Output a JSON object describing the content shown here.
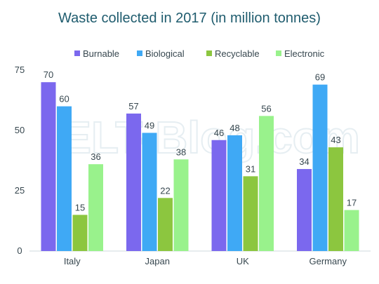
{
  "chart_data": {
    "type": "bar",
    "title": "Waste collected in 2017 (in million tonnes)",
    "categories": [
      "Italy",
      "Japan",
      "UK",
      "Germany"
    ],
    "series": [
      {
        "name": "Burnable",
        "color": "#7b68ee",
        "values": [
          70,
          57,
          46,
          34
        ]
      },
      {
        "name": "Biological",
        "color": "#3fa9f5",
        "values": [
          60,
          49,
          48,
          69
        ]
      },
      {
        "name": "Recyclable",
        "color": "#8cc63f",
        "values": [
          15,
          22,
          31,
          43
        ]
      },
      {
        "name": "Electronic",
        "color": "#99f28c",
        "values": [
          36,
          38,
          56,
          17
        ]
      }
    ],
    "yticks": [
      0,
      25,
      50,
      75
    ],
    "ylim": [
      0,
      75
    ],
    "xlabel": "",
    "ylabel": "",
    "grid": false,
    "legend_position": "top-center",
    "data_labels": true
  },
  "watermark": "ELT-Blog.com"
}
